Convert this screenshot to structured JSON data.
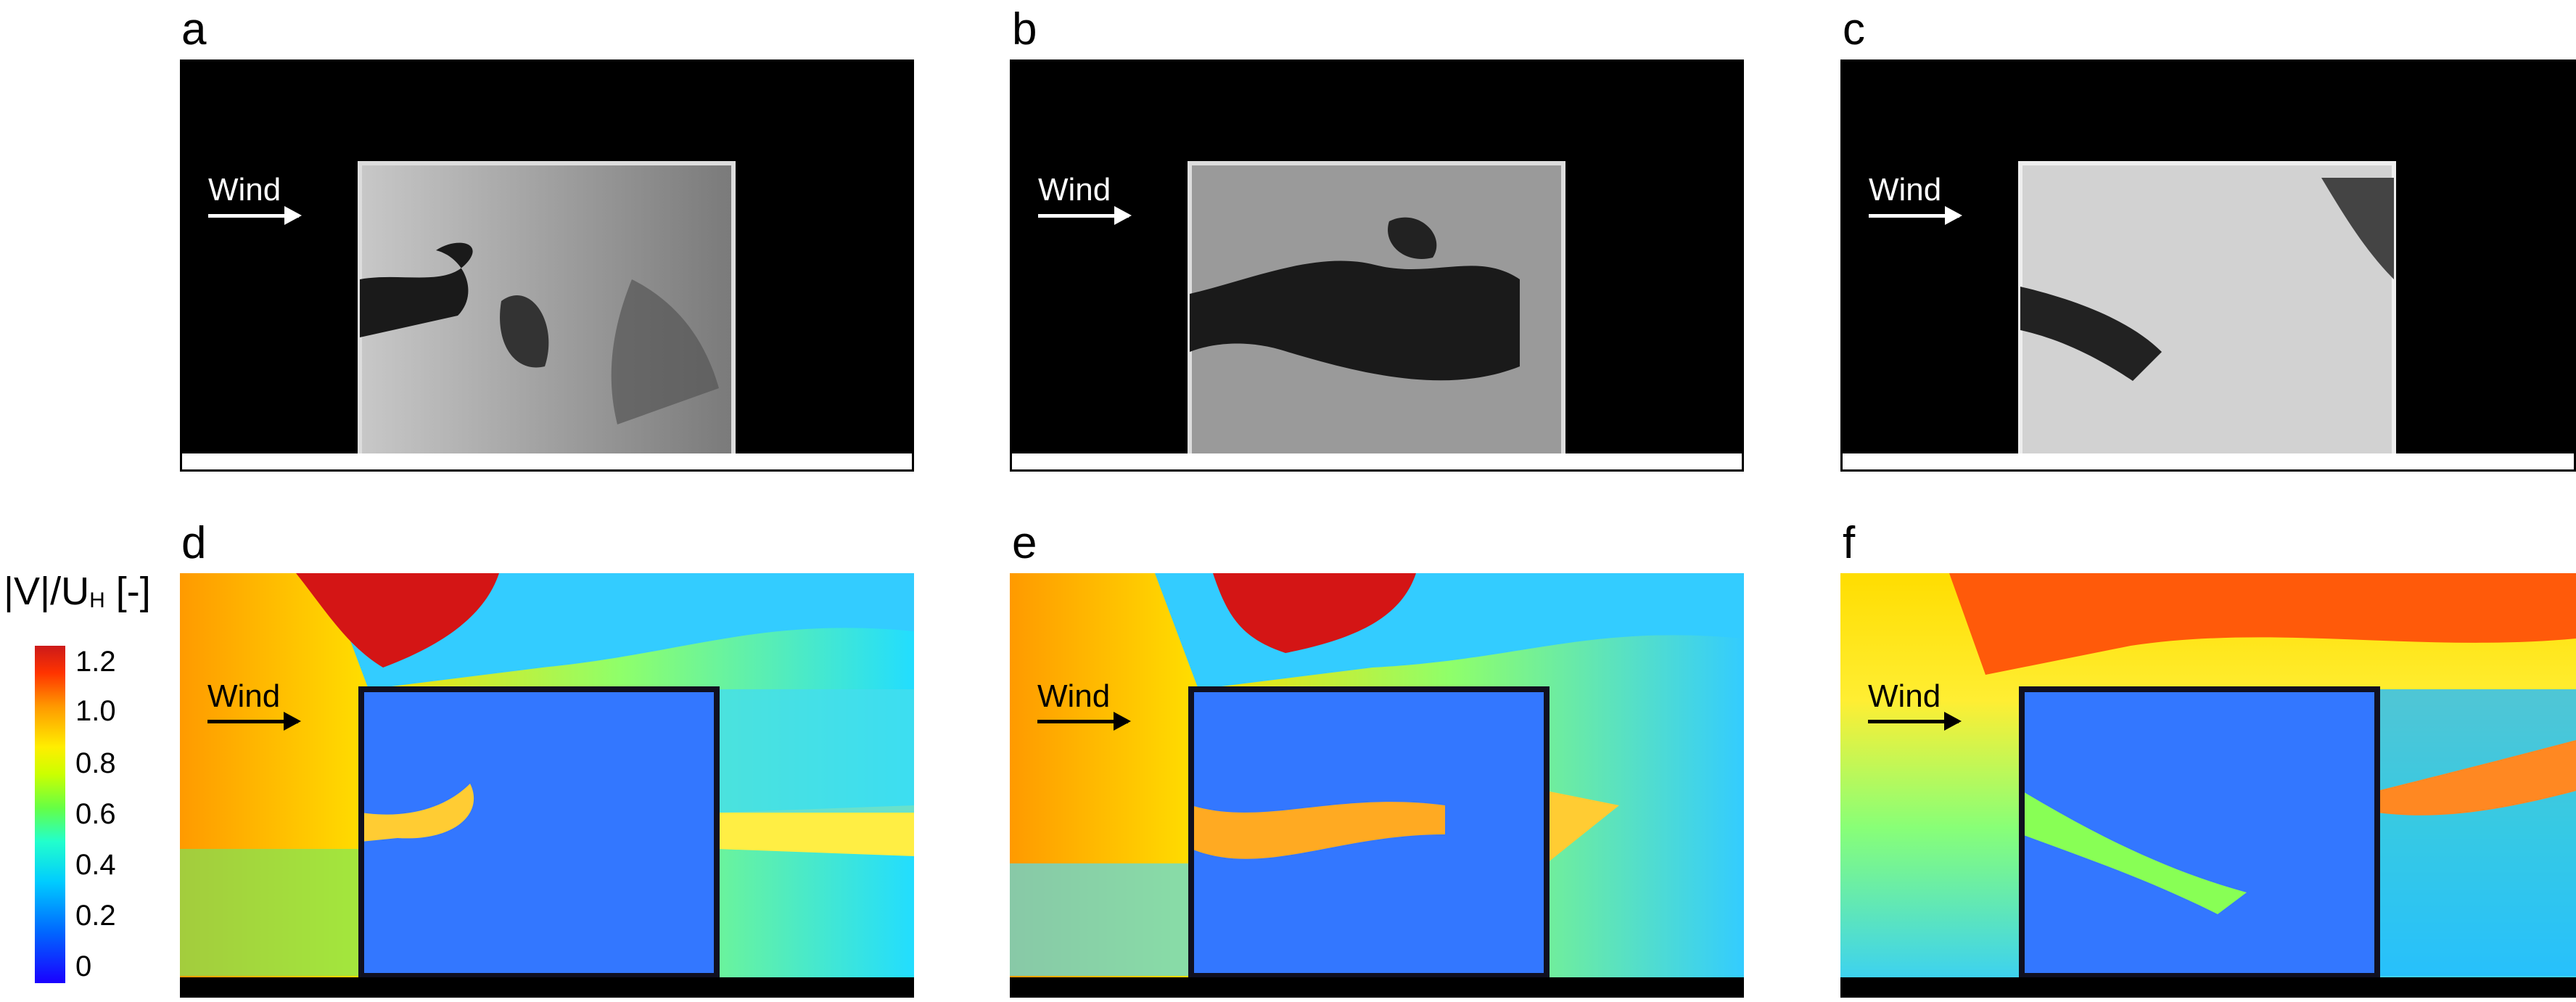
{
  "panels": [
    {
      "id": "a",
      "label": "a",
      "type": "photo",
      "wind": "Wind"
    },
    {
      "id": "b",
      "label": "b",
      "type": "photo",
      "wind": "Wind"
    },
    {
      "id": "c",
      "label": "c",
      "type": "photo",
      "wind": "Wind"
    },
    {
      "id": "d",
      "label": "d",
      "type": "cfd",
      "wind": "Wind"
    },
    {
      "id": "e",
      "label": "e",
      "type": "cfd",
      "wind": "Wind"
    },
    {
      "id": "f",
      "label": "f",
      "type": "cfd",
      "wind": "Wind"
    }
  ],
  "colorbar": {
    "title_main": "|V|/U",
    "title_sub": "H",
    "title_unit": " [-]",
    "ticks": [
      "1.2",
      "1.0",
      "0.8",
      "0.6",
      "0.4",
      "0.2",
      "0"
    ],
    "colors": {
      "low": "#1a00ff",
      "mid": "#66ff44",
      "high": "#cc1a1a"
    }
  }
}
